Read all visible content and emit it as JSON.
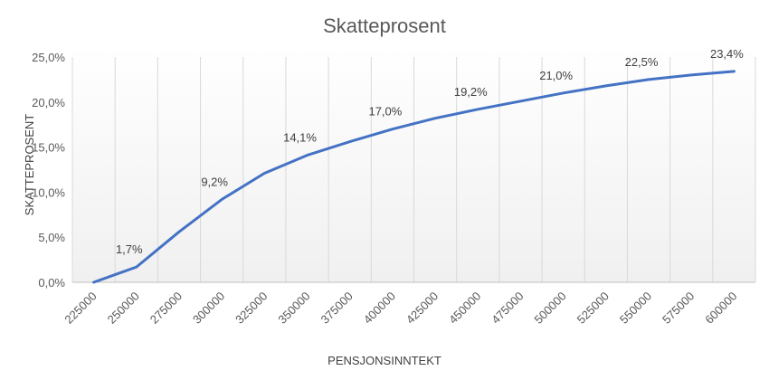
{
  "chart_data": {
    "type": "line",
    "title": "Skatteprosent",
    "xlabel": "PENSJONSINNTEKT",
    "ylabel": "SKATTEPROSENT",
    "ylim": [
      0,
      25
    ],
    "yticks": [
      "0,0%",
      "5,0%",
      "10,0%",
      "15,0%",
      "20,0%",
      "25,0%"
    ],
    "categories": [
      "225000",
      "250000",
      "275000",
      "300000",
      "325000",
      "350000",
      "375000",
      "400000",
      "425000",
      "450000",
      "475000",
      "500000",
      "525000",
      "550000",
      "575000",
      "600000"
    ],
    "series": [
      {
        "values": [
          0.0,
          1.7,
          5.6,
          9.2,
          12.1,
          14.1,
          15.6,
          17.0,
          18.2,
          19.2,
          20.1,
          21.0,
          21.8,
          22.5,
          23.0,
          23.4
        ],
        "data_labels": [
          "",
          "1,7%",
          "",
          "9,2%",
          "",
          "14,1%",
          "",
          "17,0%",
          "",
          "19,2%",
          "",
          "21,0%",
          "",
          "22,5%",
          "",
          "23,4%"
        ]
      }
    ],
    "grid": "vertical",
    "colors": {
      "line": "#4472c4",
      "grid": "#d9d9d9",
      "axis": "#bfbfbf"
    }
  }
}
